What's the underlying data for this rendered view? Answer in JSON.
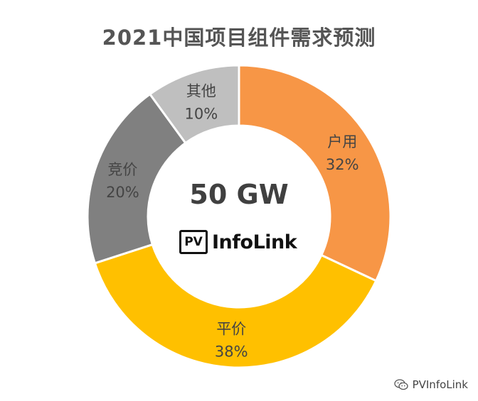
{
  "colors": {
    "background": "#ffffff",
    "title": "#555555",
    "center_value": "#404040",
    "slice_border": "#ffffff"
  },
  "center": {
    "value": "50 GW",
    "logo_box": "PV",
    "logo_name": "InfoLink"
  },
  "watermark": {
    "icon": "wechat-icon",
    "text": "PVInfoLink"
  },
  "chart_data": {
    "type": "pie",
    "title": "2021中国项目组件需求预测",
    "donut": true,
    "start": "top",
    "direction": "clockwise",
    "slices": [
      {
        "name": "户用",
        "value": 32,
        "value_label": "32%",
        "color": "#F79646"
      },
      {
        "name": "平价",
        "value": 38,
        "value_label": "38%",
        "color": "#FFC000"
      },
      {
        "name": "竞价",
        "value": 20,
        "value_label": "20%",
        "color": "#808080"
      },
      {
        "name": "其他",
        "value": 10,
        "value_label": "10%",
        "color": "#BFBFBF"
      }
    ]
  }
}
